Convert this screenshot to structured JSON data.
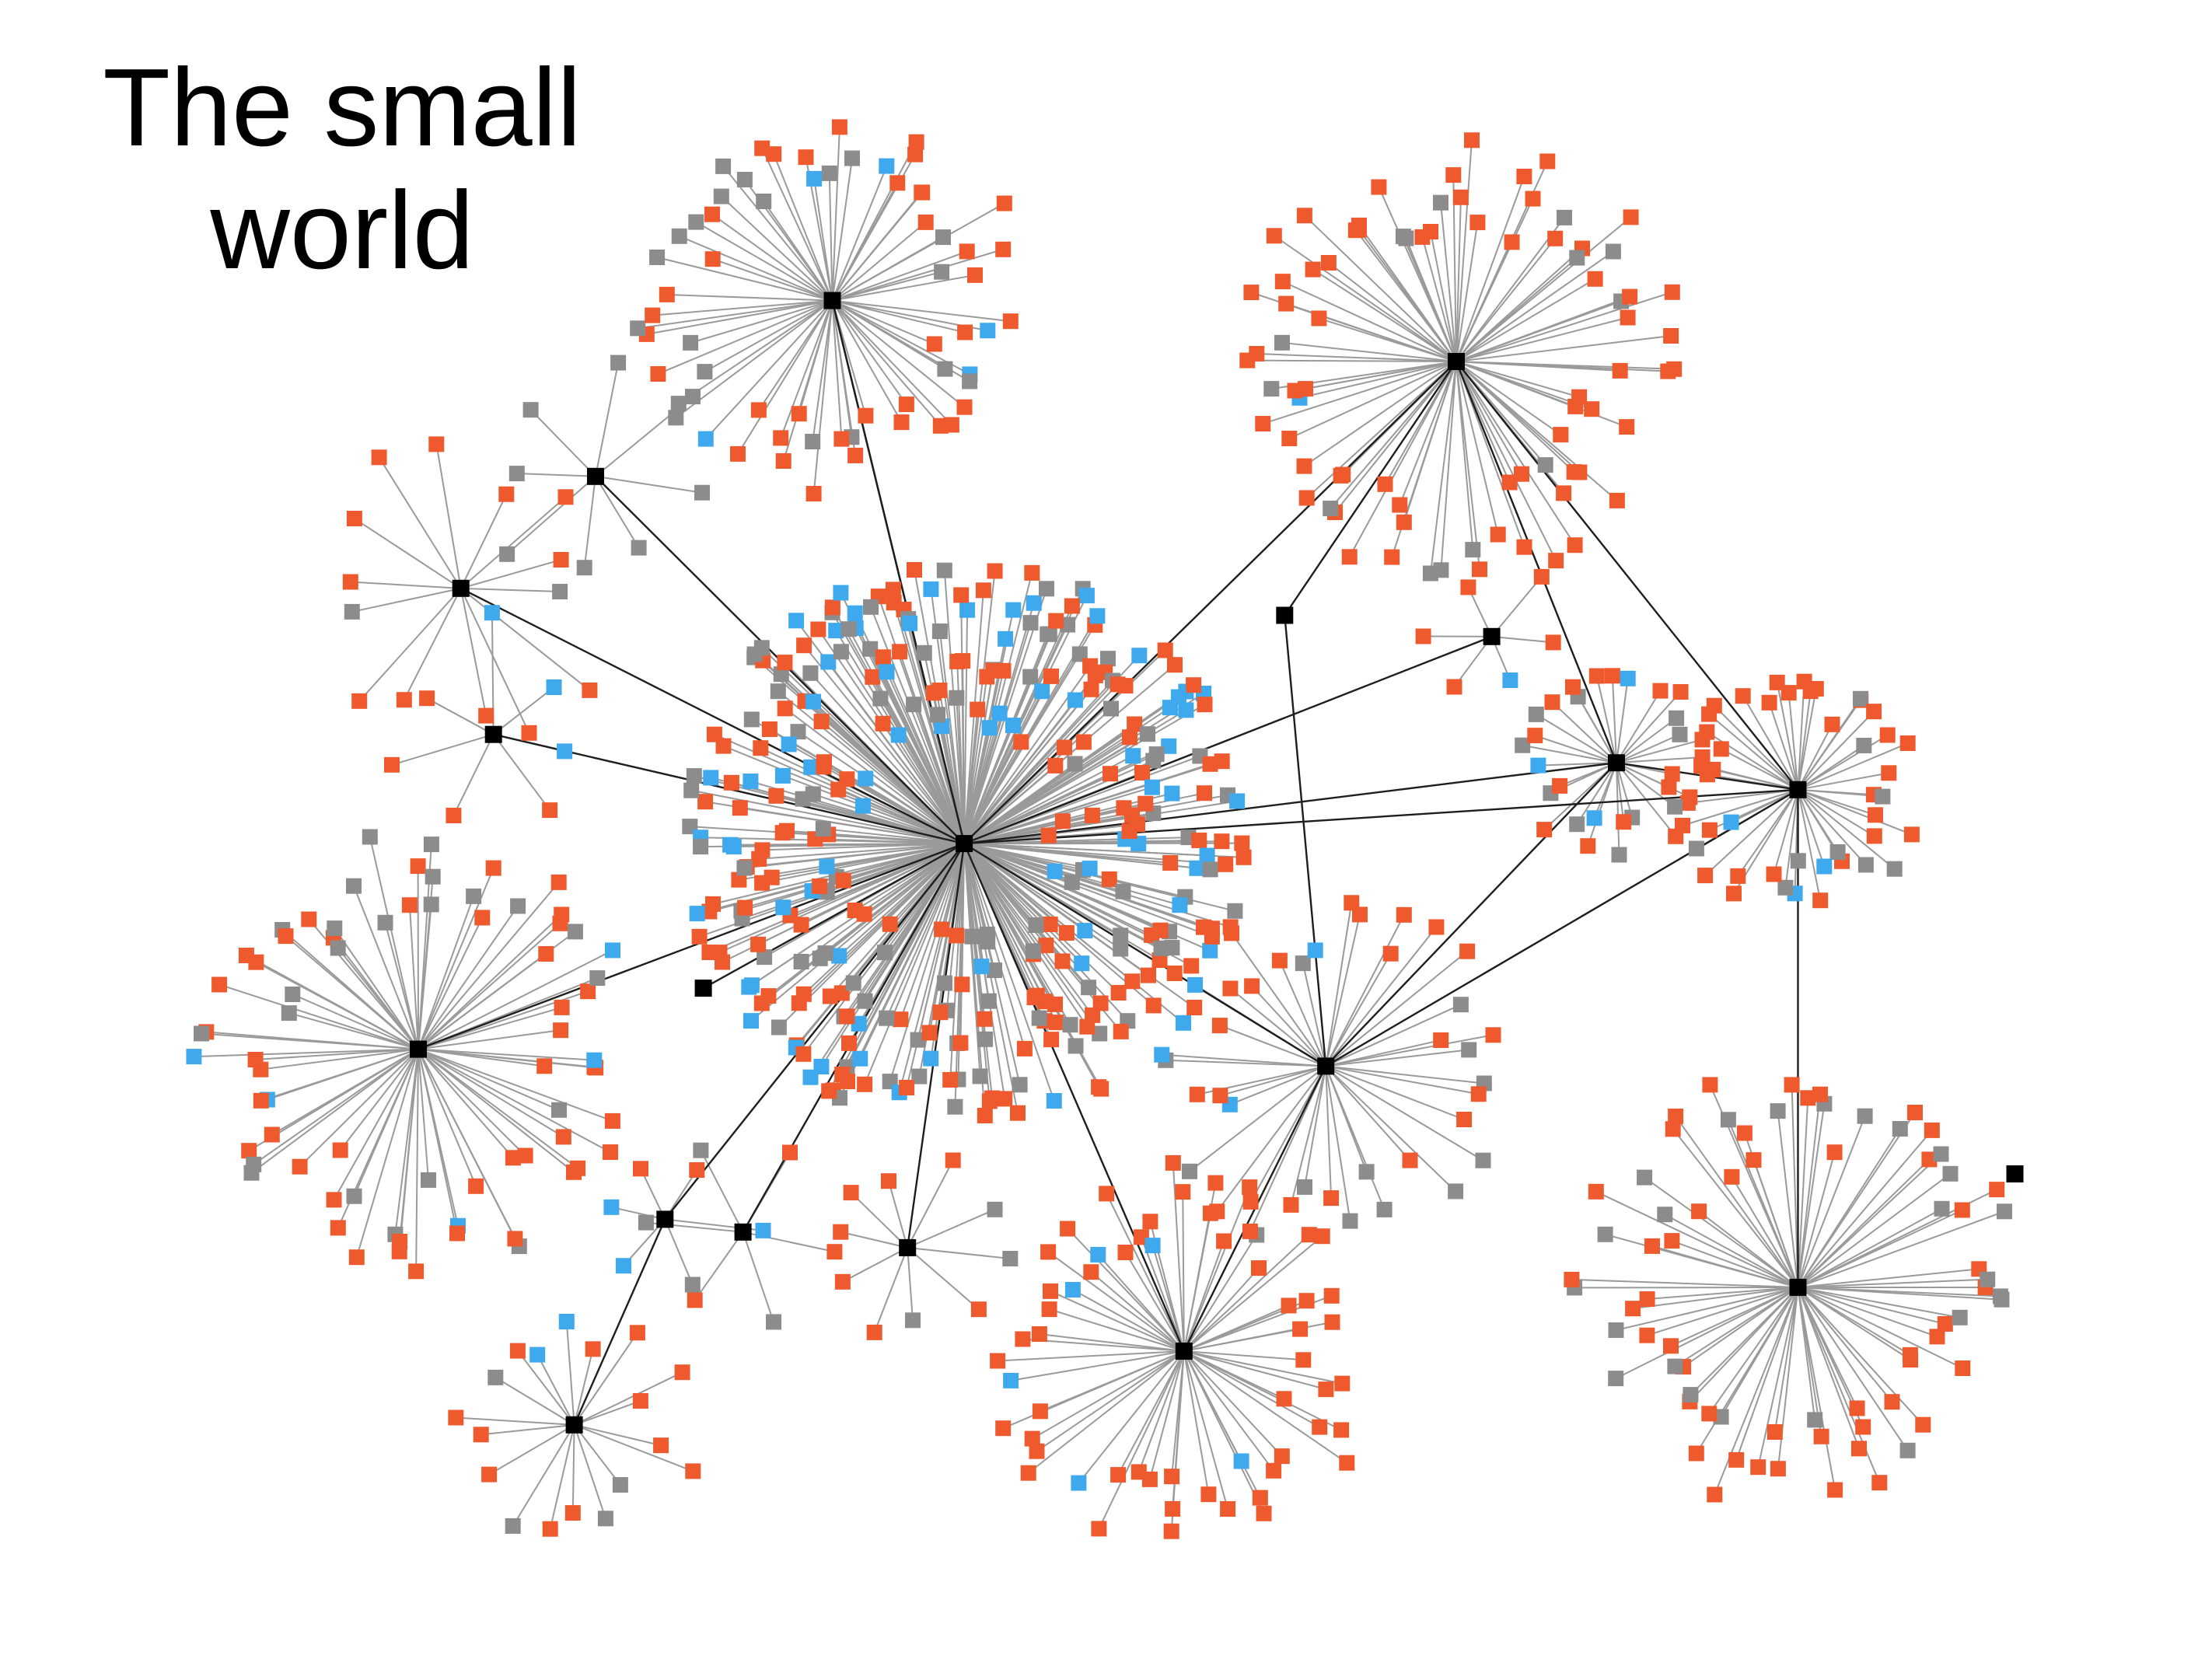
{
  "title": {
    "line1": "The small",
    "line2": "world"
  },
  "colors": {
    "background": "#ffffff",
    "hub": "#000000",
    "node_orange": "#ee5a2e",
    "node_gray": "#8c8c8c",
    "node_blue": "#3fa9ee",
    "edge_leaf": "#9a9a9a",
    "edge_hub": "#1e1e1e"
  },
  "legend": []
}
